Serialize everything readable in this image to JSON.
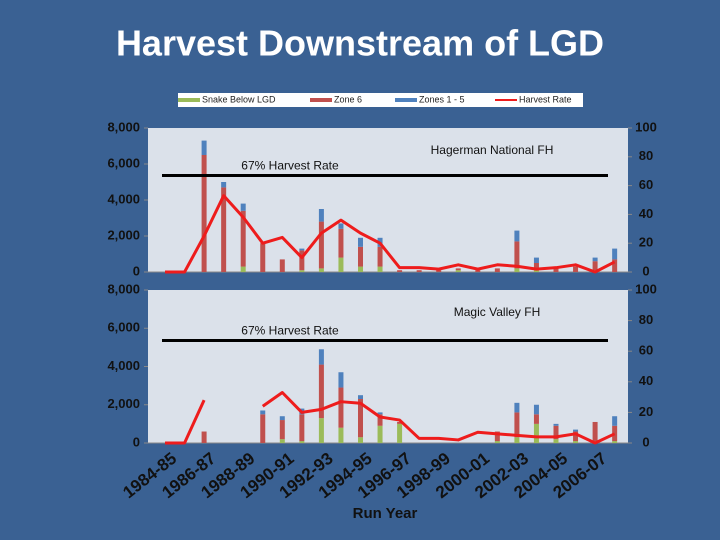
{
  "chart_data": [
    {
      "type": "bar",
      "title": "Harvest Downstream of LGD",
      "subtitle": "Hagerman National FH",
      "reference": {
        "value": 67,
        "label": "67% Harvest Rate"
      },
      "ylim": [
        0,
        8000
      ],
      "yticks": [
        0,
        {
          "value": 2000,
          "label": "2,000"
        },
        {
          "value": 4000,
          "label": "4,000"
        },
        {
          "value": 6000,
          "label": "6,000"
        },
        {
          "value": 8000,
          "label": "8,000"
        }
      ],
      "y2lim": [
        0,
        100
      ],
      "y2ticks": [
        0,
        20,
        40,
        60,
        80,
        100
      ],
      "series": [
        {
          "name": "Snake Below LGD",
          "color": "#9bbb59",
          "values": [
            0,
            0,
            0,
            0,
            300,
            0,
            0,
            100,
            200,
            800,
            300,
            300,
            0,
            0,
            0,
            100,
            0,
            0,
            200,
            100,
            0,
            0,
            100,
            0
          ]
        },
        {
          "name": "Zone 6",
          "color": "#c0504d",
          "values": [
            0,
            0,
            6500,
            4700,
            3100,
            1600,
            700,
            1100,
            2600,
            1600,
            1100,
            1100,
            100,
            100,
            100,
            100,
            100,
            200,
            1500,
            400,
            200,
            300,
            500,
            700
          ]
        },
        {
          "name": "Zones 1 - 5",
          "color": "#4f81bd",
          "values": [
            0,
            0,
            800,
            300,
            400,
            0,
            0,
            100,
            700,
            300,
            500,
            500,
            0,
            0,
            0,
            0,
            0,
            0,
            600,
            300,
            0,
            0,
            200,
            600
          ]
        },
        {
          "name": "Harvest Rate",
          "color": "#ee1c1c",
          "axis": "y2",
          "values": [
            0,
            0,
            25,
            53,
            38,
            20,
            24,
            10,
            27,
            36,
            27,
            20,
            3,
            3,
            2,
            5,
            2,
            5,
            4,
            2,
            3,
            5,
            0,
            7
          ]
        }
      ]
    },
    {
      "type": "bar",
      "subtitle": "Magic Valley FH",
      "x_label": "Run Year",
      "reference": {
        "value": 67,
        "label": "67% Harvest Rate"
      },
      "categories": [
        "1984-85",
        null,
        "1986-87",
        null,
        "1988-89",
        null,
        "1990-91",
        null,
        "1992-93",
        null,
        "1994-95",
        null,
        "1996-97",
        null,
        "1998-99",
        null,
        "2000-01",
        null,
        "2002-03",
        null,
        "2004-05",
        null,
        "2006-07",
        null
      ],
      "ylim": [
        0,
        8000
      ],
      "yticks": [
        0,
        {
          "value": 2000,
          "label": "2,000"
        },
        {
          "value": 4000,
          "label": "4,000"
        },
        {
          "value": 6000,
          "label": "6,000"
        },
        {
          "value": 8000,
          "label": "8,000"
        }
      ],
      "y2lim": [
        0,
        100
      ],
      "y2ticks": [
        0,
        20,
        40,
        60,
        80,
        100
      ],
      "series": [
        {
          "values": [
            0,
            0,
            0,
            0,
            0,
            0,
            200,
            100,
            1300,
            800,
            300,
            900,
            1000,
            0,
            0,
            0,
            0,
            100,
            300,
            1000,
            200,
            100,
            100,
            100
          ]
        },
        {
          "values": [
            0,
            0,
            600,
            0,
            0,
            1500,
            1000,
            1400,
            2800,
            2100,
            2000,
            600,
            100,
            0,
            0,
            0,
            0,
            500,
            1300,
            500,
            700,
            500,
            1000,
            800
          ]
        },
        {
          "values": [
            0,
            0,
            0,
            0,
            0,
            200,
            200,
            300,
            800,
            800,
            200,
            100,
            0,
            0,
            0,
            0,
            0,
            0,
            500,
            500,
            100,
            100,
            0,
            500
          ]
        },
        {
          "axis": "y2",
          "values": [
            0,
            0,
            28,
            null,
            null,
            24,
            33,
            20,
            22,
            27,
            26,
            17,
            15,
            3,
            3,
            2,
            7,
            6,
            5,
            4,
            4,
            6,
            0,
            6
          ]
        }
      ]
    }
  ]
}
